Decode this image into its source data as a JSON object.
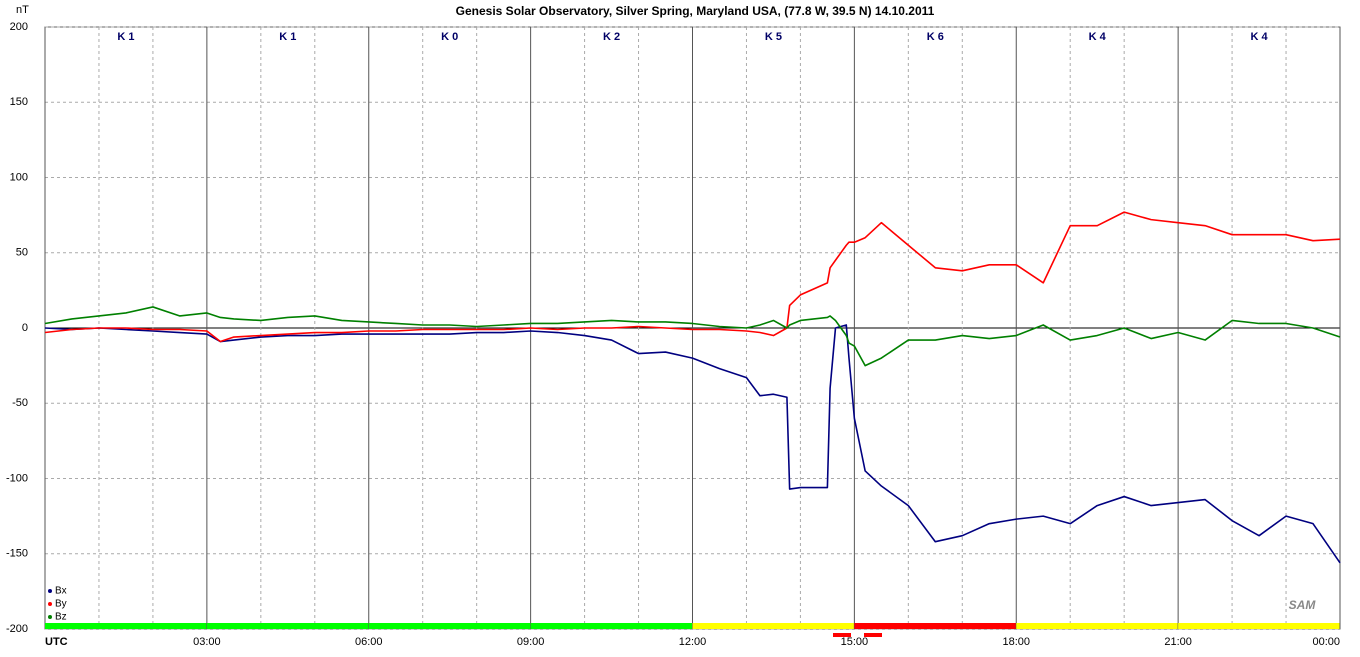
{
  "chart_data": {
    "type": "line",
    "title": "Genesis Solar Observatory, Silver Spring, Maryland USA, (77.8 W, 39.5 N)  14.10.2011",
    "y_label": "nT",
    "logo": "SAM",
    "x": [
      0,
      0.5,
      1,
      1.5,
      2,
      2.5,
      3,
      3.25,
      3.5,
      4,
      4.5,
      5,
      5.5,
      6,
      6.5,
      7,
      7.5,
      8,
      8.5,
      9,
      9.5,
      10,
      10.5,
      11,
      11.5,
      12,
      12.5,
      13,
      13.25,
      13.5,
      13.75,
      13.8,
      14,
      14.5,
      14.55,
      14.65,
      14.85,
      14.9,
      15,
      15.2,
      15.5,
      16,
      16.5,
      17,
      17.5,
      18,
      18.5,
      19,
      19.5,
      20,
      20.5,
      21,
      21.5,
      22,
      22.5,
      23,
      23.5,
      24
    ],
    "series": [
      {
        "name": "Bx",
        "color": "#000080",
        "values": [
          0,
          -1,
          0,
          -1,
          -2,
          -3,
          -4,
          -9,
          -8,
          -6,
          -5,
          -5,
          -4,
          -4,
          -4,
          -4,
          -4,
          -3,
          -3,
          -2,
          -3,
          -5,
          -8,
          -17,
          -16,
          -20,
          -27,
          -33,
          -45,
          -44,
          -46,
          -107,
          -106,
          -106,
          -40,
          0,
          2,
          -20,
          -60,
          -95,
          -105,
          -118,
          -142,
          -138,
          -130,
          -127,
          -125,
          -130,
          -118,
          -112,
          -118,
          -116,
          -114,
          -128,
          -138,
          -125,
          -130,
          -156
        ]
      },
      {
        "name": "By",
        "color": "#ff0000",
        "values": [
          -3,
          -1,
          0,
          0,
          -1,
          -1,
          -2,
          -9,
          -6,
          -5,
          -4,
          -3,
          -3,
          -2,
          -2,
          -1,
          -1,
          -1,
          -1,
          0,
          -1,
          0,
          0,
          1,
          0,
          -1,
          -1,
          -2,
          -3,
          -5,
          0,
          15,
          22,
          30,
          40,
          45,
          55,
          57,
          57,
          60,
          70,
          55,
          40,
          38,
          42,
          42,
          30,
          68,
          68,
          77,
          72,
          70,
          68,
          62,
          62,
          62,
          58,
          59
        ]
      },
      {
        "name": "Bz",
        "color": "#008000",
        "values": [
          3,
          6,
          8,
          10,
          14,
          8,
          10,
          7,
          6,
          5,
          7,
          8,
          5,
          4,
          3,
          2,
          2,
          1,
          2,
          3,
          3,
          4,
          5,
          4,
          4,
          3,
          1,
          0,
          2,
          5,
          0,
          2,
          5,
          7,
          8,
          5,
          -5,
          -10,
          -12,
          -25,
          -20,
          -8,
          -8,
          -5,
          -7,
          -5,
          2,
          -8,
          -5,
          0,
          -7,
          -3,
          -8,
          5,
          3,
          3,
          0,
          -6
        ]
      }
    ],
    "xlim": [
      0,
      24
    ],
    "xticks": [
      {
        "value": 0,
        "label": "UTC"
      },
      {
        "value": 3,
        "label": "03:00"
      },
      {
        "value": 6,
        "label": "06:00"
      },
      {
        "value": 9,
        "label": "09:00"
      },
      {
        "value": 12,
        "label": "12:00"
      },
      {
        "value": 15,
        "label": "15:00"
      },
      {
        "value": 18,
        "label": "18:00"
      },
      {
        "value": 21,
        "label": "21:00"
      },
      {
        "value": 24,
        "label": "00:00"
      }
    ],
    "ylim": [
      -200,
      200
    ],
    "yticks": [
      -200,
      -150,
      -100,
      -50,
      0,
      50,
      100,
      150,
      200
    ],
    "k_labels": [
      "K 1",
      "K 1",
      "K 0",
      "K 2",
      "K 5",
      "K 6",
      "K 4",
      "K 4"
    ],
    "k_colors": [
      "#00ff00",
      "#00ff00",
      "#00ff00",
      "#00ff00",
      "#ffff00",
      "#ff0000",
      "#ffff00",
      "#ffff00"
    ],
    "grid": true,
    "legend": "lower left"
  }
}
